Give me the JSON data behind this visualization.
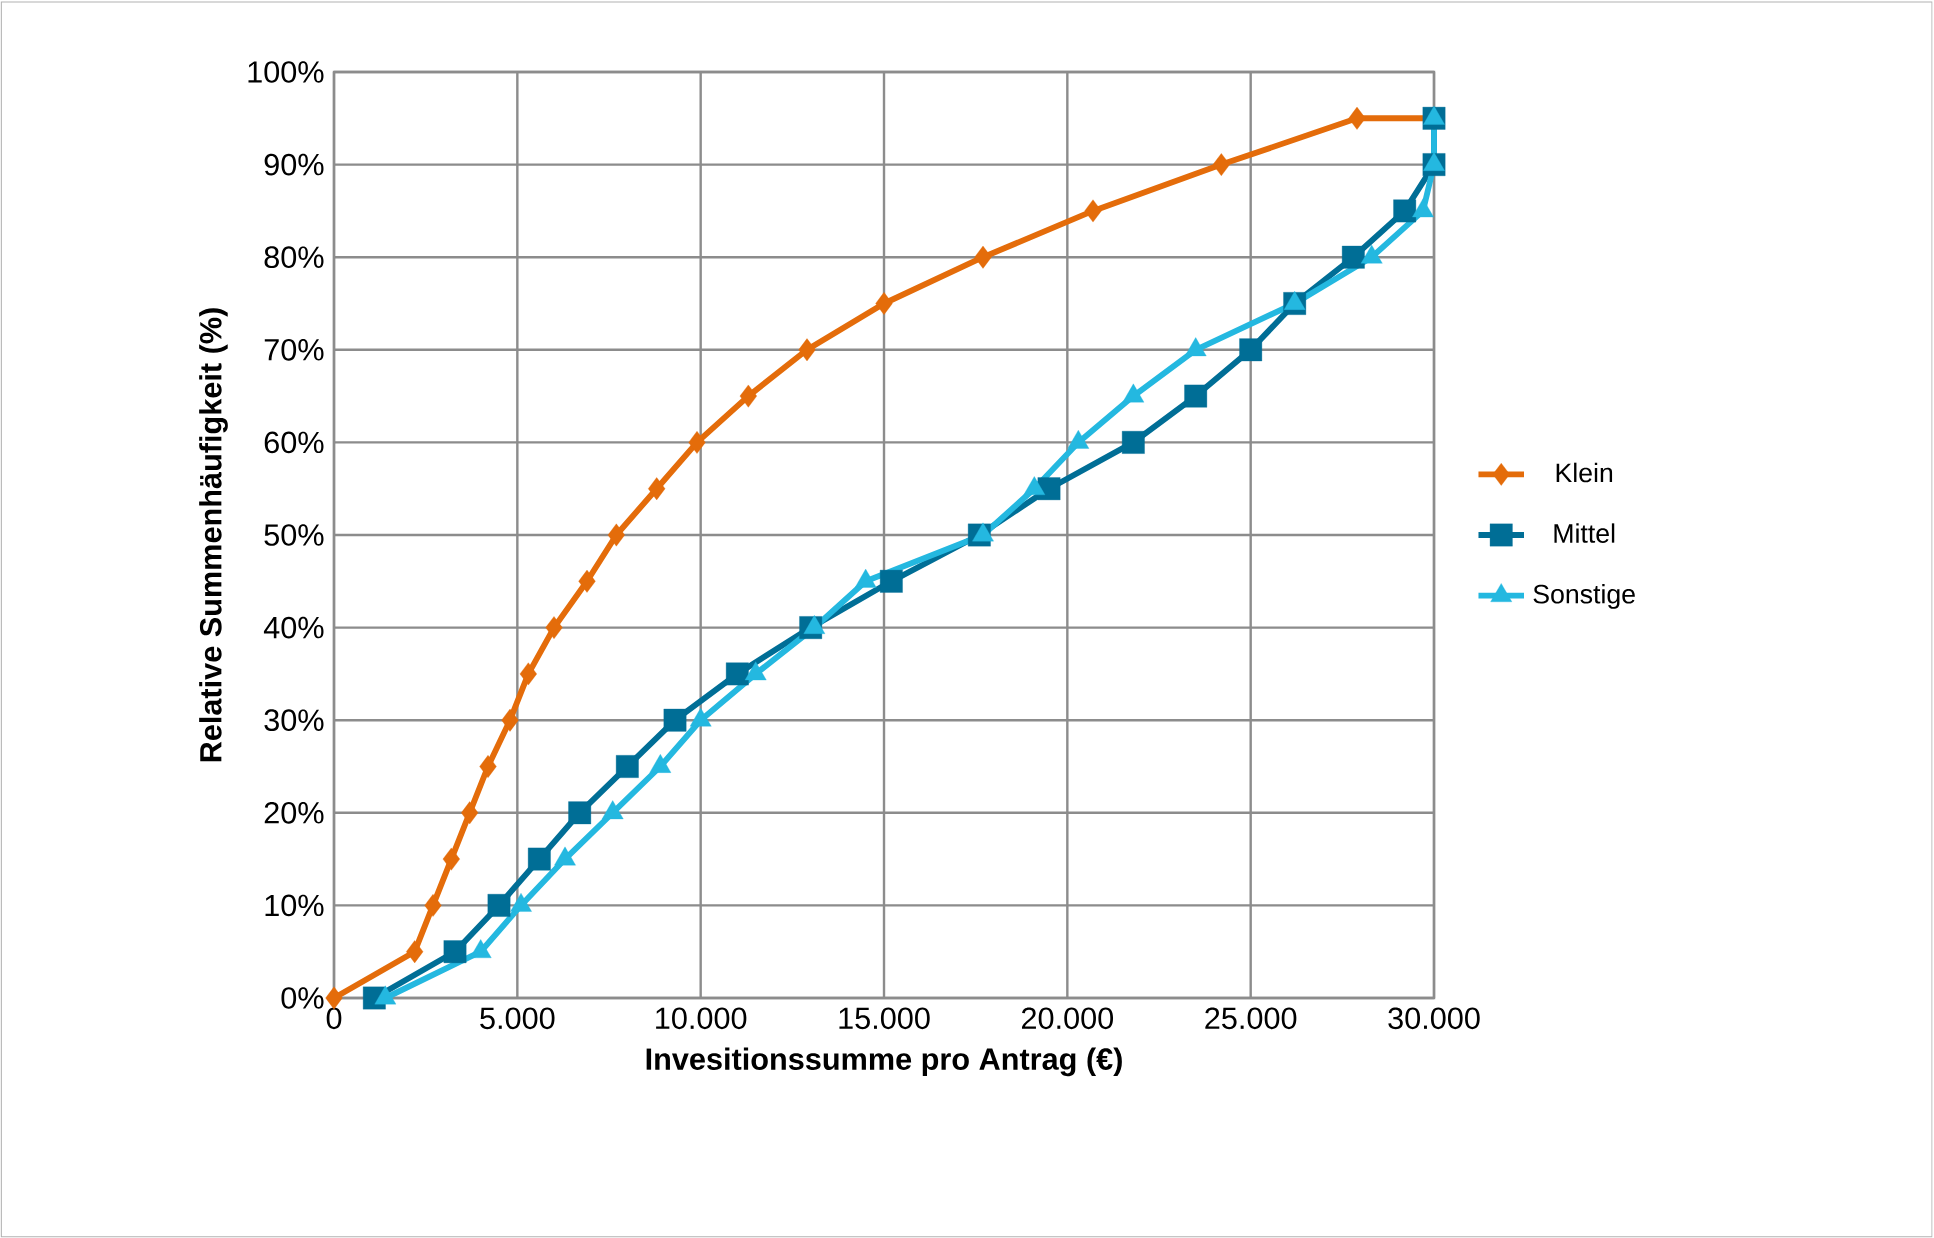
{
  "chart_data": {
    "type": "line",
    "xlabel": "Invesitionssumme pro Antrag (€)",
    "ylabel": "Relative Summenhäufigkeit (%)",
    "xlim": [
      0,
      30000
    ],
    "ylim": [
      0,
      100
    ],
    "xticks": [
      0,
      {
        "value": 5000,
        "label": "5.000"
      },
      {
        "value": 10000,
        "label": "10.000"
      },
      {
        "value": 15000,
        "label": "15.000"
      },
      {
        "value": 20000,
        "label": "20.000"
      },
      {
        "value": 25000,
        "label": "25.000"
      },
      {
        "value": 30000,
        "label": "30.000"
      }
    ],
    "yticks": [
      {
        "value": 0,
        "label": "0%"
      },
      {
        "value": 10,
        "label": "10%"
      },
      {
        "value": 20,
        "label": "20%"
      },
      {
        "value": 30,
        "label": "30%"
      },
      {
        "value": 40,
        "label": "40%"
      },
      {
        "value": 50,
        "label": "50%"
      },
      {
        "value": 60,
        "label": "60%"
      },
      {
        "value": 70,
        "label": "70%"
      },
      {
        "value": 80,
        "label": "80%"
      },
      {
        "value": 90,
        "label": "90%"
      },
      {
        "value": 100,
        "label": "100%"
      }
    ],
    "grid": true,
    "legend": "right",
    "line_style": "solid",
    "series": [
      {
        "name": "Klein",
        "color": "#e46c0a",
        "marker": "diamond",
        "x": [
          0,
          2200,
          2700,
          3200,
          3700,
          4200,
          4800,
          5300,
          6000,
          6900,
          7700,
          8800,
          9900,
          11300,
          12900,
          15000,
          17700,
          20700,
          24200,
          27900,
          30000
        ],
        "values": [
          0,
          5,
          10,
          15,
          20,
          25,
          30,
          35,
          40,
          45,
          50,
          55,
          60,
          65,
          70,
          75,
          80,
          85,
          90,
          95,
          95
        ]
      },
      {
        "name": "Mittel",
        "color": "#006e96",
        "marker": "square",
        "x": [
          1100,
          3300,
          4500,
          5600,
          6700,
          8000,
          9300,
          11000,
          13000,
          15200,
          17600,
          19500,
          21800,
          23500,
          25000,
          26200,
          27800,
          29200,
          30000,
          30000
        ],
        "values": [
          0,
          5,
          10,
          15,
          20,
          25,
          30,
          35,
          40,
          45,
          50,
          55,
          60,
          65,
          70,
          75,
          80,
          85,
          90,
          95
        ]
      },
      {
        "name": "Sonstige",
        "color": "#24b8e0",
        "marker": "triangle",
        "x": [
          1400,
          4000,
          5100,
          6300,
          7600,
          8900,
          10000,
          11500,
          13100,
          14500,
          17700,
          19100,
          20300,
          21800,
          23500,
          26200,
          28300,
          29700,
          30000,
          30000
        ],
        "values": [
          0,
          5,
          10,
          15,
          20,
          25,
          30,
          35,
          40,
          45,
          50,
          55,
          60,
          65,
          70,
          75,
          80,
          85,
          90,
          95
        ]
      }
    ]
  }
}
